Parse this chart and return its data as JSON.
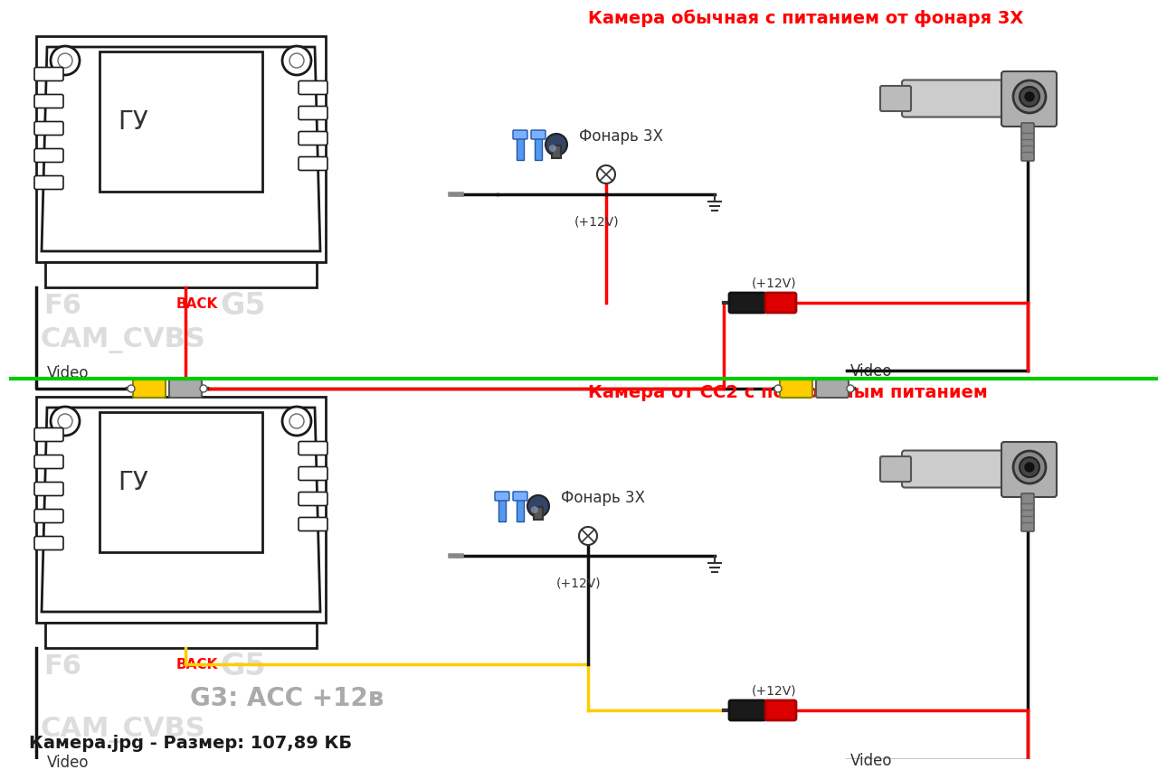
{
  "bg_color": "#ffffff",
  "title1": "Камера обычная с питанием от фонаря 3Х",
  "title2": "Камера от СС2 с постоянным питанием",
  "label_gu": "ГУ",
  "label_f6": "F6",
  "label_back": "BACK",
  "label_g5": "G5",
  "label_cam_cvbs": "CAM_CVBS",
  "label_video": "Video",
  "label_fonar": "Фонарь 3Х",
  "label_plus12v": "(+12V)",
  "label_g3": "G3: АСС +12в",
  "footer": "Камера.jpg - Размер: 107,89 КБ",
  "divider_color": "#00cc00",
  "title_color": "#ff0000",
  "red_wire": "#ff0000",
  "yellow_wire": "#ffcc00",
  "black_wire": "#111111",
  "connector_yellow": "#ffcc00",
  "connector_gray": "#aaaaaa",
  "back_label_color": "#ff0000",
  "f6_color": "#dddddd",
  "cam_cvbs_color": "#dddddd",
  "g3_color": "#aaaaaa",
  "g5_color": "#dddddd"
}
